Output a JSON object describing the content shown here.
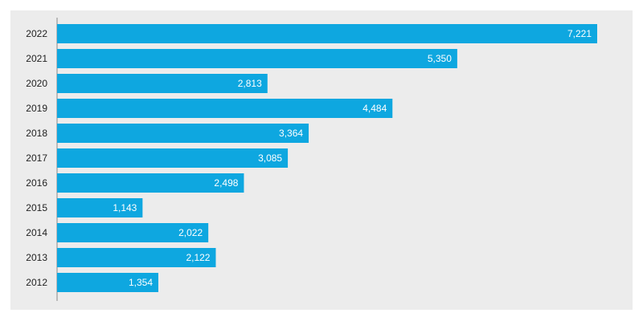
{
  "chart_data": {
    "type": "bar",
    "orientation": "horizontal",
    "categories": [
      "2022",
      "2021",
      "2020",
      "2019",
      "2018",
      "2017",
      "2016",
      "2015",
      "2014",
      "2013",
      "2012"
    ],
    "values": [
      7221,
      5350,
      2813,
      4484,
      3364,
      3085,
      2498,
      1143,
      2022,
      2122,
      1354
    ],
    "value_labels": [
      "7,221",
      "5,350",
      "2,813",
      "4,484",
      "3,364",
      "3,085",
      "2,498",
      "1,143",
      "2,022",
      "2,122",
      "1,354"
    ],
    "title": "",
    "xlabel": "",
    "ylabel": "",
    "xlim": [
      0,
      7221
    ],
    "grid": false,
    "legend": "none",
    "colors": {
      "bar": "#0ea7e0",
      "background": "#ececec",
      "axis": "#888888",
      "label_text": "#222222",
      "value_text": "#ffffff"
    }
  }
}
